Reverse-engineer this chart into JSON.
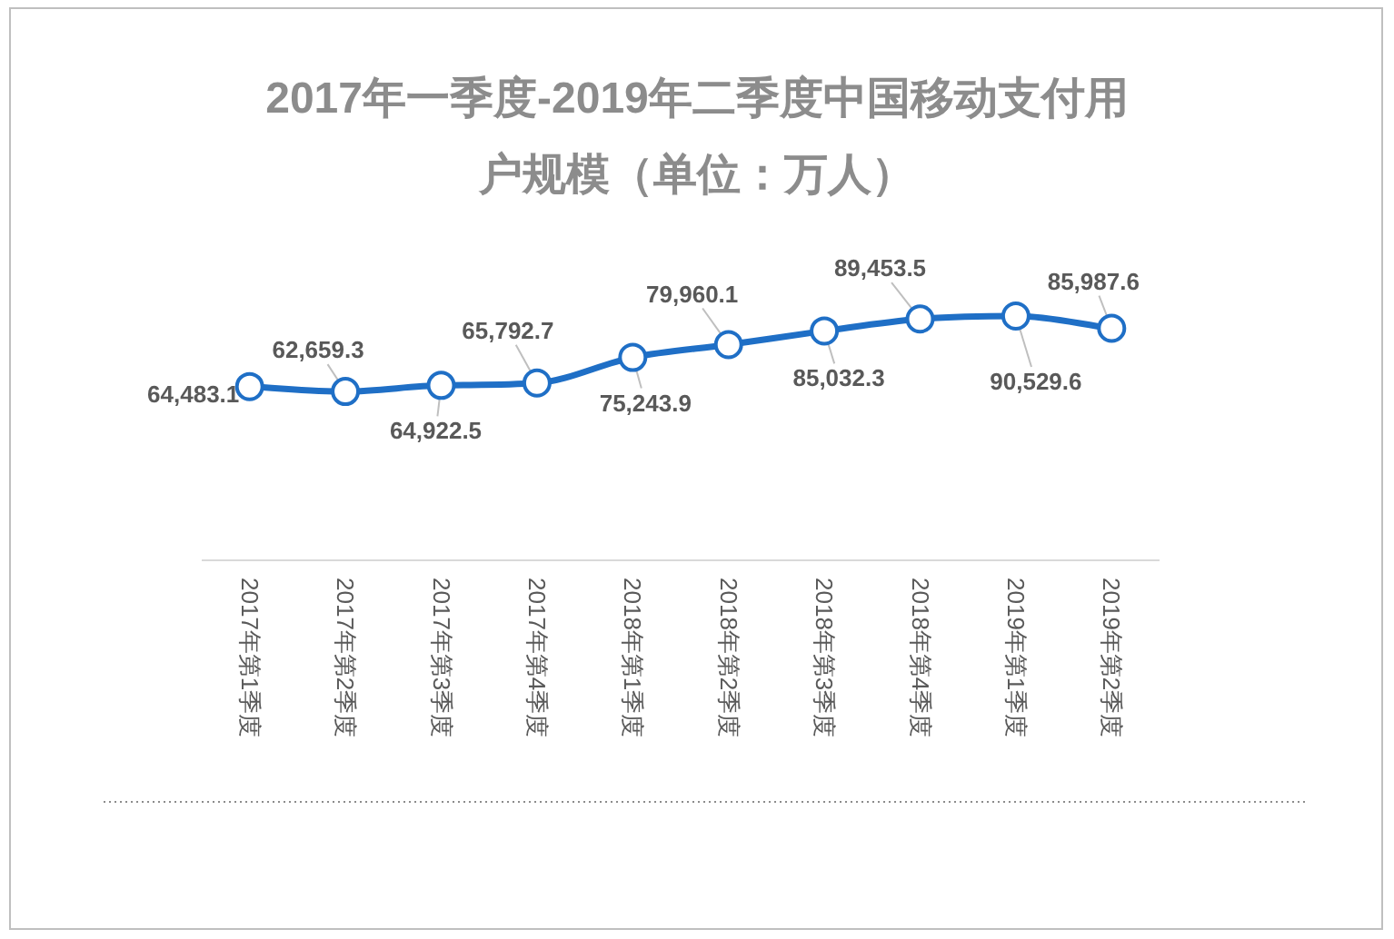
{
  "chart_data": {
    "type": "line",
    "title": "2017年一季度-2019年二季度中国移动支付用户规模（单位：万人）",
    "categories": [
      "2017年第1季度",
      "2017年第2季度",
      "2017年第3季度",
      "2017年第4季度",
      "2018年第1季度",
      "2018年第2季度",
      "2018年第3季度",
      "2018年第4季度",
      "2019年第1季度",
      "2019年第2季度"
    ],
    "values": [
      64483.1,
      62659.3,
      64922.5,
      65792.7,
      75243.9,
      79960.1,
      85032.3,
      89453.5,
      90529.6,
      85987.6
    ],
    "value_labels": [
      "64,483.1",
      "62,659.3",
      "64,922.5",
      "65,792.7",
      "75,243.9",
      "79,960.1",
      "85,032.3",
      "89,453.5",
      "90,529.6",
      "85,987.6"
    ],
    "color": "#1f6fc6",
    "marker": "circle",
    "line_style": "solid"
  }
}
